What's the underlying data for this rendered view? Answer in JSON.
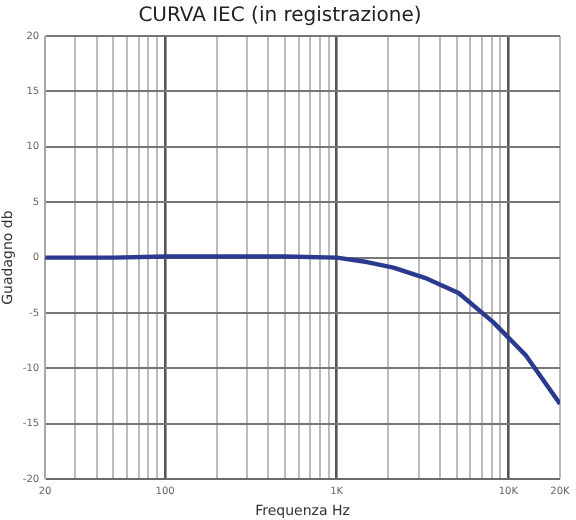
{
  "chart_data": {
    "type": "line",
    "title": "CURVA IEC (in registrazione)",
    "xlabel": "Frequenza Hz",
    "ylabel": "Guadagno db",
    "x": [
      20,
      50,
      100,
      200,
      500,
      1000,
      1500,
      2140,
      3360,
      5130,
      8130,
      12600,
      20000
    ],
    "series": [
      {
        "color": "#2b3a8f",
        "values": [
          0,
          0,
          0.1,
          0.1,
          0.1,
          0,
          -0.4,
          -0.9,
          -1.9,
          -3.2,
          -5.8,
          -8.8,
          -13.2
        ]
      }
    ],
    "log": "x",
    "xlim": [
      20,
      20000
    ],
    "ylim": [
      -20,
      20
    ],
    "xticks": [
      {
        "value": 20,
        "label": "20"
      },
      {
        "value": 30,
        "label": null
      },
      {
        "value": 40,
        "label": null
      },
      {
        "value": 50,
        "label": null
      },
      {
        "value": 60,
        "label": null
      },
      {
        "value": 70,
        "label": null
      },
      {
        "value": 80,
        "label": null
      },
      {
        "value": 90,
        "label": null
      },
      {
        "value": 100,
        "label": "100"
      },
      {
        "value": 200,
        "label": null
      },
      {
        "value": 300,
        "label": null
      },
      {
        "value": 400,
        "label": null
      },
      {
        "value": 500,
        "label": null
      },
      {
        "value": 600,
        "label": null
      },
      {
        "value": 700,
        "label": null
      },
      {
        "value": 800,
        "label": null
      },
      {
        "value": 900,
        "label": null
      },
      {
        "value": 1000,
        "label": "1K"
      },
      {
        "value": 2000,
        "label": null
      },
      {
        "value": 3000,
        "label": null
      },
      {
        "value": 4000,
        "label": null
      },
      {
        "value": 5000,
        "label": null
      },
      {
        "value": 6000,
        "label": null
      },
      {
        "value": 7000,
        "label": null
      },
      {
        "value": 8000,
        "label": null
      },
      {
        "value": 9000,
        "label": null
      },
      {
        "value": 10000,
        "label": "10K"
      },
      {
        "value": 20000,
        "label": "20K"
      }
    ],
    "yticks": [
      -20,
      -15,
      -10,
      -5,
      0,
      5,
      10,
      15,
      20
    ],
    "grid": true,
    "legend": false,
    "marker": "none",
    "line_style": "solid"
  }
}
